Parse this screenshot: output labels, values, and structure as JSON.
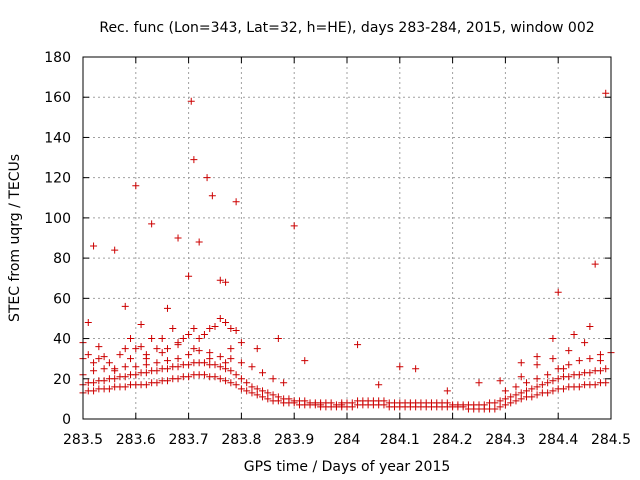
{
  "chart_data": {
    "type": "scatter",
    "title": "Rec. func (Lon=343, Lat=32, h=HE), days 283-284, 2015, window 002",
    "xlabel": "GPS time / Days of year 2015",
    "ylabel": "STEC from uqrg / TECUs",
    "xlim": [
      283.5,
      284.5
    ],
    "ylim": [
      0,
      180
    ],
    "grid": true,
    "marker": "plus",
    "color": "#cc0000",
    "x_ticks": [
      "283.5",
      "283.6",
      "283.7",
      "283.8",
      "283.9",
      "284",
      "284.1",
      "284.2",
      "284.3",
      "284.4",
      "284.5"
    ],
    "y_ticks": [
      "0",
      "20",
      "40",
      "60",
      "80",
      "100",
      "120",
      "140",
      "160",
      "180"
    ],
    "series": [
      {
        "name": "STEC",
        "x": [
          283.51,
          283.52,
          283.54,
          283.56,
          283.58,
          283.6,
          283.61,
          283.63,
          283.66,
          283.68,
          283.7,
          283.705,
          283.71,
          283.72,
          283.735,
          283.745,
          283.76,
          283.77,
          283.78,
          283.79,
          283.8,
          283.83,
          283.87,
          283.9,
          283.92,
          283.95,
          283.99,
          284.02,
          284.06,
          284.1,
          284.13,
          284.19,
          284.25,
          284.29,
          284.33,
          284.36,
          284.39,
          284.4,
          284.41,
          284.43,
          284.46,
          284.47,
          284.49,
          283.5,
          283.51,
          283.52,
          283.53,
          283.55,
          283.57,
          283.58,
          283.59,
          283.6,
          283.61,
          283.62,
          283.63,
          283.64,
          283.65,
          283.66,
          283.67,
          283.68,
          283.69,
          283.7,
          283.71,
          283.72,
          283.73,
          283.74,
          283.75,
          283.76,
          283.77,
          283.78,
          283.79,
          283.5,
          283.51,
          283.52,
          283.53,
          283.54,
          283.55,
          283.56,
          283.57,
          283.58,
          283.59,
          283.6,
          283.61,
          283.62,
          283.63,
          283.64,
          283.65,
          283.66,
          283.67,
          283.68,
          283.69,
          283.7,
          283.71,
          283.72,
          283.73,
          283.74,
          283.75,
          283.76,
          283.77,
          283.78,
          283.79,
          283.8,
          283.81,
          283.82,
          283.83,
          283.84,
          283.85,
          283.86,
          283.87,
          283.88,
          283.89,
          283.9,
          283.91,
          283.92,
          283.93,
          283.94,
          283.95,
          283.96,
          283.97,
          283.98,
          283.99,
          284.0,
          284.01,
          284.02,
          284.03,
          284.04,
          284.05,
          284.06,
          284.07,
          284.08,
          284.09,
          284.1,
          284.11,
          284.12,
          284.13,
          284.14,
          284.15,
          284.16,
          284.17,
          284.18,
          284.19,
          284.2,
          284.21,
          284.22,
          284.23,
          284.24,
          284.25,
          284.26,
          284.27,
          284.28,
          284.29,
          284.3,
          284.31,
          284.32,
          284.33,
          284.34,
          284.35,
          284.36,
          284.37,
          284.38,
          284.39,
          284.4,
          284.41,
          284.42,
          284.43,
          284.44,
          284.45,
          284.46,
          284.47,
          284.48,
          284.49,
          283.5,
          283.51,
          283.52,
          283.53,
          283.54,
          283.55,
          283.56,
          283.57,
          283.58,
          283.59,
          283.6,
          283.61,
          283.62,
          283.63,
          283.64,
          283.65,
          283.66,
          283.67,
          283.68,
          283.69,
          283.7,
          283.71,
          283.72,
          283.73,
          283.74,
          283.75,
          283.76,
          283.77,
          283.78,
          283.79,
          283.8,
          283.81,
          283.82,
          283.83,
          283.84,
          283.85,
          283.86,
          283.87,
          283.88,
          283.89,
          283.9,
          283.91,
          283.92,
          283.93,
          283.94,
          283.95,
          283.96,
          283.97,
          283.98,
          283.99,
          284.0,
          284.01,
          284.02,
          284.03,
          284.04,
          284.05,
          284.06,
          284.07,
          284.08,
          284.09,
          284.1,
          284.11,
          284.12,
          284.13,
          284.14,
          284.15,
          284.16,
          284.17,
          284.18,
          284.19,
          284.2,
          284.21,
          284.22,
          284.23,
          284.24,
          284.25,
          284.26,
          284.27,
          284.28,
          284.29,
          284.3,
          284.31,
          284.32,
          284.33,
          284.34,
          284.35,
          284.36,
          284.37,
          284.38,
          284.39,
          284.4,
          284.41,
          284.42,
          284.43,
          284.44,
          284.45,
          284.46,
          284.47,
          284.48,
          284.49,
          283.5,
          283.52,
          283.54,
          283.56,
          283.58,
          283.6,
          283.62,
          283.64,
          283.66,
          283.68,
          283.7,
          283.72,
          283.74,
          283.76,
          283.78,
          283.8,
          283.82,
          283.84,
          283.86,
          283.88,
          284.3,
          284.32,
          284.34,
          284.36,
          284.38,
          284.4,
          284.42,
          284.44,
          284.46,
          284.48,
          284.5,
          283.5,
          283.53,
          283.56,
          283.59,
          283.62,
          283.65,
          283.68,
          283.71,
          283.74,
          283.77,
          284.33,
          284.36,
          284.39,
          284.42,
          284.45,
          284.48
        ],
        "y": [
          48,
          86,
          31,
          84,
          56,
          116,
          47,
          97,
          55,
          90,
          71,
          158,
          129,
          88,
          120,
          111,
          69,
          68,
          45,
          108,
          38,
          35,
          40,
          96,
          29,
          7,
          8,
          37,
          17,
          26,
          25,
          14,
          18,
          19,
          28,
          31,
          40,
          63,
          25,
          42,
          46,
          77,
          162,
          30,
          32,
          28,
          30,
          28,
          32,
          35,
          30,
          35,
          36,
          30,
          40,
          35,
          40,
          35,
          45,
          38,
          40,
          42,
          45,
          40,
          42,
          45,
          46,
          50,
          48,
          35,
          44,
          13,
          14,
          14,
          15,
          15,
          15,
          16,
          16,
          16,
          17,
          17,
          17,
          17,
          18,
          18,
          19,
          19,
          20,
          20,
          21,
          21,
          22,
          22,
          22,
          21,
          21,
          20,
          19,
          18,
          17,
          15,
          14,
          13,
          12,
          11,
          10,
          9,
          9,
          8,
          8,
          8,
          7,
          7,
          7,
          7,
          6,
          6,
          6,
          6,
          6,
          6,
          6,
          7,
          7,
          7,
          7,
          7,
          7,
          6,
          6,
          6,
          6,
          6,
          6,
          6,
          6,
          6,
          6,
          6,
          6,
          6,
          6,
          6,
          5,
          5,
          5,
          5,
          5,
          5,
          6,
          7,
          8,
          9,
          10,
          11,
          11,
          12,
          13,
          13,
          14,
          15,
          15,
          16,
          16,
          16,
          17,
          17,
          17,
          18,
          18,
          17,
          18,
          18,
          19,
          19,
          20,
          20,
          21,
          21,
          22,
          22,
          23,
          23,
          24,
          24,
          25,
          25,
          26,
          26,
          27,
          27,
          28,
          28,
          28,
          27,
          27,
          26,
          25,
          24,
          22,
          20,
          18,
          16,
          15,
          14,
          13,
          12,
          11,
          10,
          10,
          9,
          9,
          9,
          8,
          8,
          8,
          8,
          8,
          7,
          7,
          8,
          8,
          9,
          9,
          9,
          9,
          9,
          9,
          8,
          8,
          8,
          8,
          8,
          8,
          8,
          8,
          8,
          8,
          8,
          8,
          7,
          7,
          7,
          7,
          7,
          7,
          7,
          8,
          8,
          9,
          10,
          11,
          12,
          13,
          14,
          15,
          16,
          17,
          18,
          19,
          20,
          21,
          21,
          22,
          22,
          23,
          23,
          24,
          24,
          25,
          22,
          24,
          25,
          25,
          26,
          26,
          27,
          28,
          29,
          30,
          32,
          34,
          33,
          31,
          30,
          28,
          26,
          23,
          20,
          18,
          14,
          16,
          18,
          20,
          22,
          25,
          27,
          29,
          30,
          32,
          33,
          38,
          36,
          24,
          40,
          32,
          33,
          37,
          35,
          30,
          28,
          21,
          27,
          30,
          34,
          38,
          29
        ]
      }
    ]
  }
}
